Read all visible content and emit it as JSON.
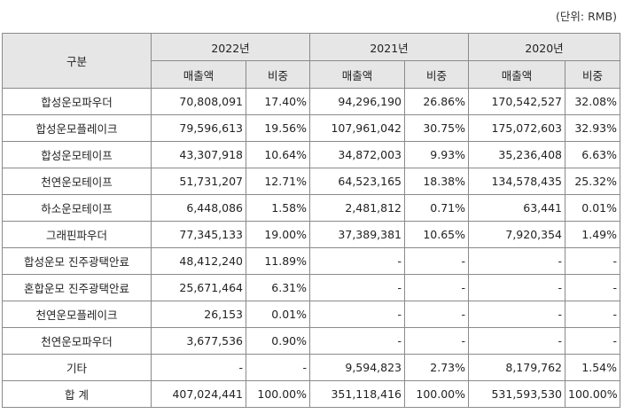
{
  "unit": "(단위: RMB)",
  "header": {
    "category": "구분",
    "years": [
      "2022년",
      "2021년",
      "2020년"
    ],
    "sales": "매출액",
    "ratio": "비중"
  },
  "rows": [
    {
      "label": "합성운모파우더",
      "v": [
        "70,808,091",
        "17.40%",
        "94,296,190",
        "26.86%",
        "170,542,527",
        "32.08%"
      ]
    },
    {
      "label": "합성운모플레이크",
      "v": [
        "79,596,613",
        "19.56%",
        "107,961,042",
        "30.75%",
        "175,072,603",
        "32.93%"
      ]
    },
    {
      "label": "합성운모테이프",
      "v": [
        "43,307,918",
        "10.64%",
        "34,872,003",
        "9.93%",
        "35,236,408",
        "6.63%"
      ]
    },
    {
      "label": "천연운모테이프",
      "v": [
        "51,731,207",
        "12.71%",
        "64,523,165",
        "18.38%",
        "134,578,435",
        "25.32%"
      ]
    },
    {
      "label": "하소운모테이프",
      "v": [
        "6,448,086",
        "1.58%",
        "2,481,812",
        "0.71%",
        "63,441",
        "0.01%"
      ]
    },
    {
      "label": "그래핀파우더",
      "v": [
        "77,345,133",
        "19.00%",
        "37,389,381",
        "10.65%",
        "7,920,354",
        "1.49%"
      ]
    },
    {
      "label": "합성운모 진주광택안료",
      "v": [
        "48,412,240",
        "11.89%",
        "-",
        "-",
        "-",
        "-"
      ]
    },
    {
      "label": "혼합운모 진주광택안료",
      "v": [
        "25,671,464",
        "6.31%",
        "-",
        "-",
        "-",
        "-"
      ]
    },
    {
      "label": "천연운모플레이크",
      "v": [
        "26,153",
        "0.01%",
        "-",
        "-",
        "-",
        "-"
      ]
    },
    {
      "label": "천연운모파우더",
      "v": [
        "3,677,536",
        "0.90%",
        "-",
        "-",
        "-",
        "-"
      ]
    },
    {
      "label": "기타",
      "v": [
        "-",
        "-",
        "9,594,823",
        "2.73%",
        "8,179,762",
        "1.54%"
      ]
    },
    {
      "label": "합 계",
      "v": [
        "407,024,441",
        "100.00%",
        "351,118,416",
        "100.00%",
        "531,593,530",
        "100.00%"
      ]
    }
  ]
}
